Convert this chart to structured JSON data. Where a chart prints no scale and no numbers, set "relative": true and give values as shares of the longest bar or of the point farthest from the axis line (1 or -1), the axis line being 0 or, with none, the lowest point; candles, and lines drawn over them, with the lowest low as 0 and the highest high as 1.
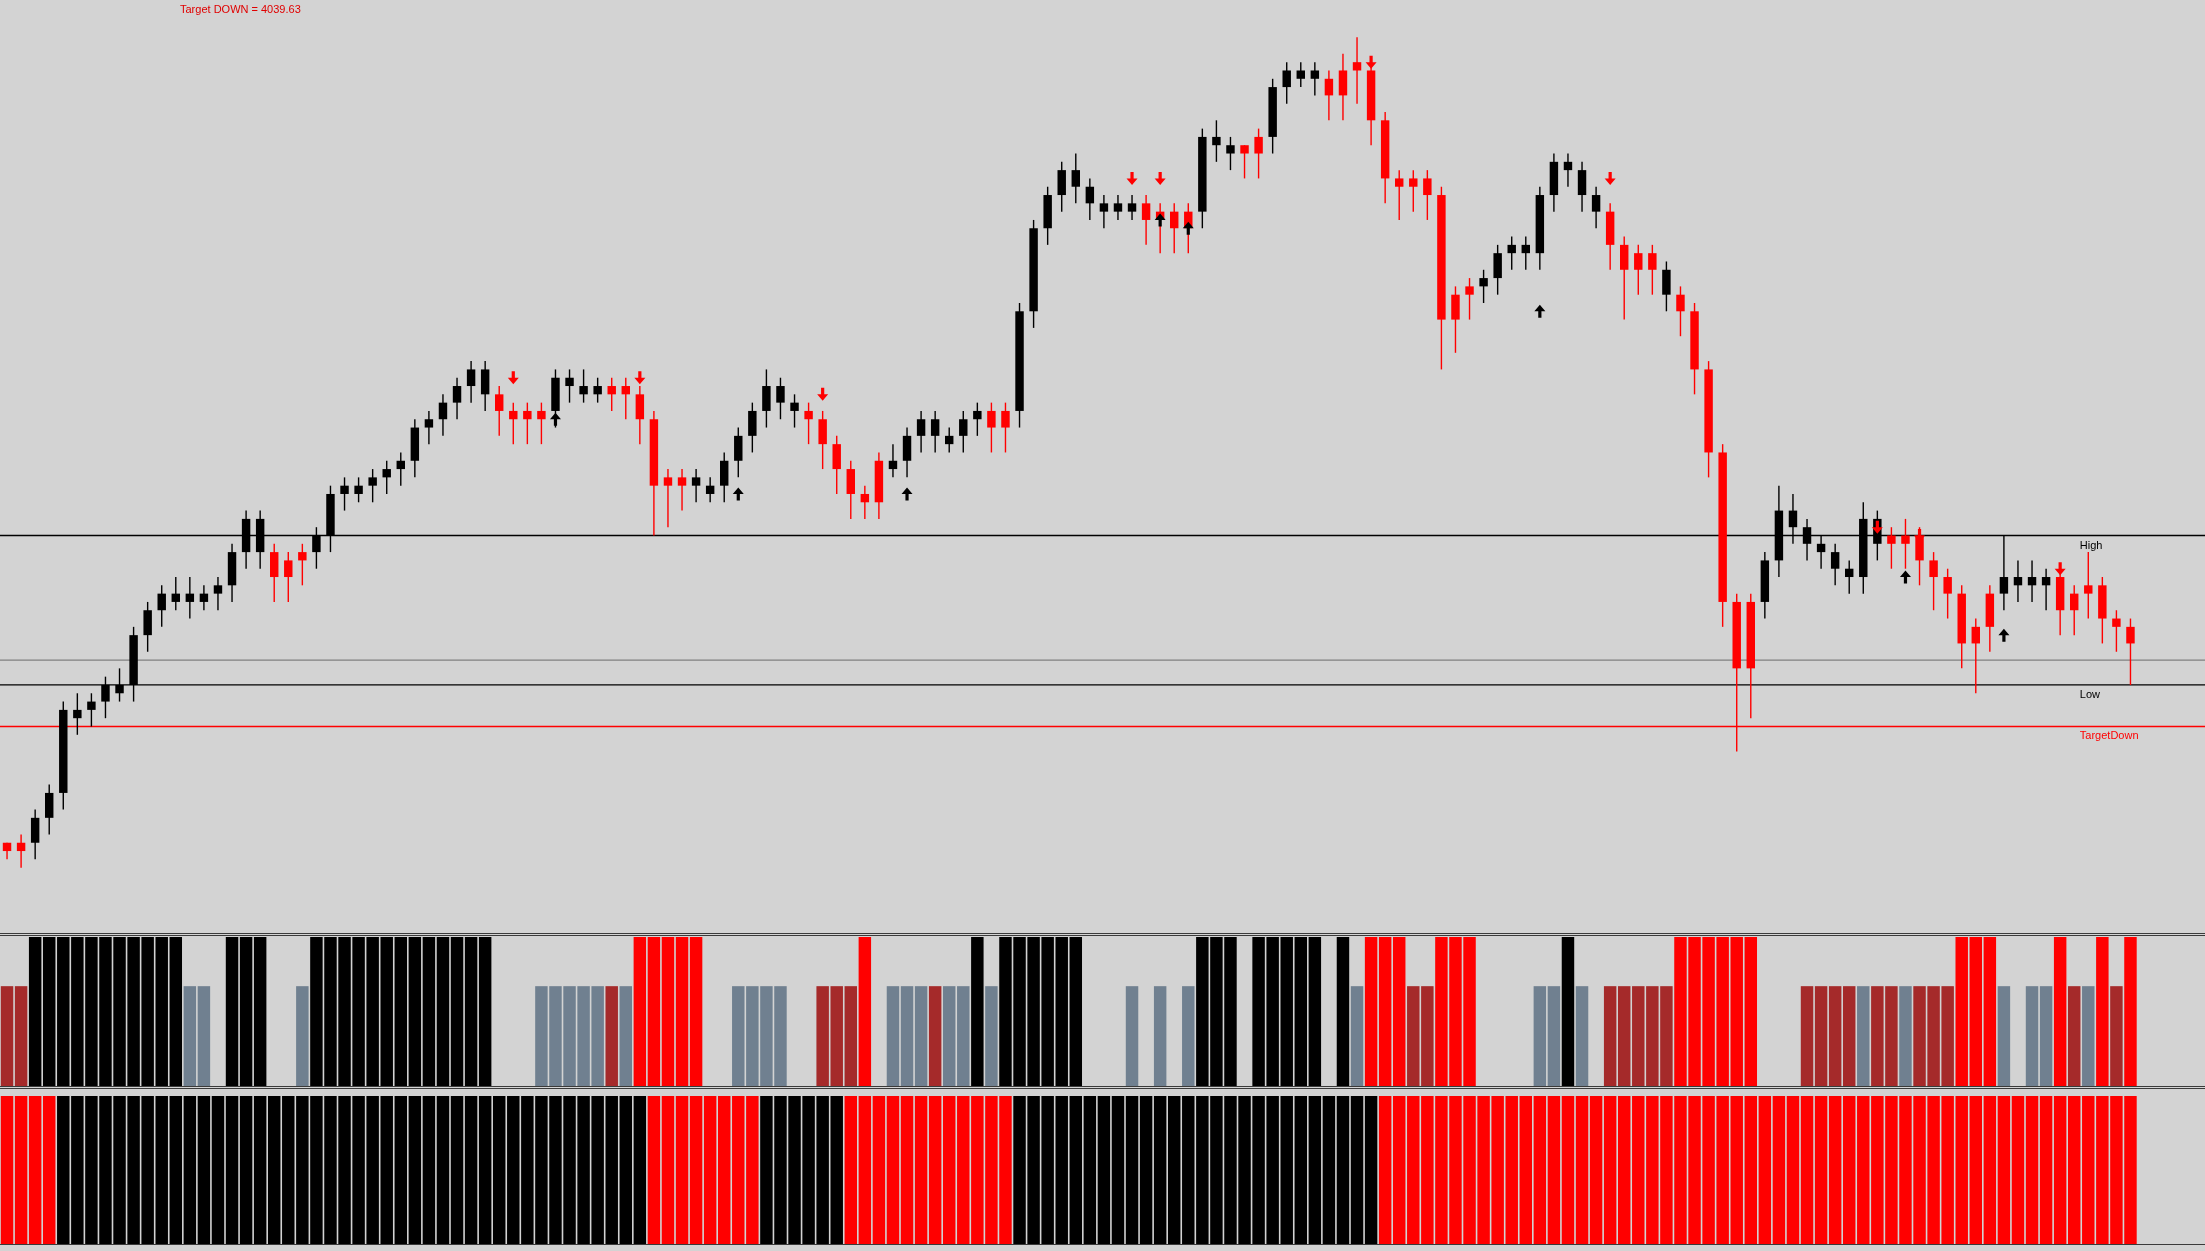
{
  "chart_data": [
    {
      "type": "candlestick",
      "relative": true,
      "categories": [
        null,
        null,
        null,
        null,
        null,
        null,
        null,
        null,
        null,
        null,
        null,
        null,
        null,
        null,
        null,
        null,
        null,
        null,
        null,
        null,
        null,
        null,
        null,
        null,
        null,
        null,
        null,
        null,
        null,
        null,
        null,
        null,
        null,
        null,
        null,
        null,
        null,
        null,
        null,
        null,
        null,
        null,
        null,
        null,
        null,
        null,
        null,
        null,
        null,
        null,
        null,
        null,
        null,
        null,
        null,
        null,
        null,
        null,
        null,
        null,
        null,
        null,
        null,
        null,
        null,
        null,
        null,
        null,
        null,
        null,
        null,
        null,
        null,
        null,
        null,
        null,
        null,
        null,
        null,
        null,
        null,
        null,
        null,
        null,
        null,
        null,
        null,
        null,
        null,
        null,
        null,
        null,
        null,
        null,
        null,
        null,
        null,
        null,
        null,
        null,
        null,
        null,
        null,
        null,
        null,
        null,
        null,
        null,
        null,
        null,
        null,
        null,
        null,
        null,
        null,
        null,
        null,
        null,
        null,
        null,
        null,
        null,
        null,
        null,
        null,
        null,
        null,
        null,
        null,
        null,
        null,
        null,
        null,
        null,
        null,
        null,
        null,
        null,
        null,
        null,
        null,
        null,
        null,
        null,
        null,
        null,
        null,
        null,
        null,
        null,
        null,
        null
      ],
      "ohlc": [
        [
          0.03,
          0.03,
          0.01,
          0.02
        ],
        [
          0.03,
          0.04,
          0,
          0.02
        ],
        [
          0.03,
          0.07,
          0.01,
          0.06
        ],
        [
          0.06,
          0.1,
          0.04,
          0.09
        ],
        [
          0.09,
          0.2,
          0.07,
          0.19
        ],
        [
          0.18,
          0.21,
          0.16,
          0.19
        ],
        [
          0.19,
          0.21,
          0.17,
          0.2
        ],
        [
          0.2,
          0.23,
          0.18,
          0.22
        ],
        [
          0.21,
          0.24,
          0.2,
          0.22
        ],
        [
          0.22,
          0.29,
          0.2,
          0.28
        ],
        [
          0.28,
          0.32,
          0.26,
          0.31
        ],
        [
          0.31,
          0.34,
          0.29,
          0.33
        ],
        [
          0.32,
          0.35,
          0.31,
          0.33
        ],
        [
          0.32,
          0.35,
          0.3,
          0.33
        ],
        [
          0.32,
          0.34,
          0.31,
          0.33
        ],
        [
          0.33,
          0.35,
          0.31,
          0.34
        ],
        [
          0.34,
          0.39,
          0.32,
          0.38
        ],
        [
          0.38,
          0.43,
          0.36,
          0.42
        ],
        [
          0.38,
          0.43,
          0.36,
          0.42
        ],
        [
          0.38,
          0.39,
          0.32,
          0.35
        ],
        [
          0.37,
          0.38,
          0.32,
          0.35
        ],
        [
          0.38,
          0.39,
          0.34,
          0.37
        ],
        [
          0.38,
          0.41,
          0.36,
          0.4
        ],
        [
          0.4,
          0.46,
          0.38,
          0.45
        ],
        [
          0.45,
          0.47,
          0.43,
          0.46
        ],
        [
          0.45,
          0.47,
          0.44,
          0.46
        ],
        [
          0.46,
          0.48,
          0.44,
          0.47
        ],
        [
          0.47,
          0.49,
          0.45,
          0.48
        ],
        [
          0.48,
          0.5,
          0.46,
          0.49
        ],
        [
          0.49,
          0.54,
          0.47,
          0.53
        ],
        [
          0.53,
          0.55,
          0.51,
          0.54
        ],
        [
          0.54,
          0.57,
          0.52,
          0.56
        ],
        [
          0.56,
          0.59,
          0.54,
          0.58
        ],
        [
          0.58,
          0.61,
          0.56,
          0.6
        ],
        [
          0.57,
          0.61,
          0.55,
          0.6
        ],
        [
          0.57,
          0.58,
          0.52,
          0.55
        ],
        [
          0.55,
          0.56,
          0.51,
          0.54
        ],
        [
          0.55,
          0.56,
          0.51,
          0.54
        ],
        [
          0.55,
          0.56,
          0.51,
          0.54
        ],
        [
          0.55,
          0.6,
          0.53,
          0.59
        ],
        [
          0.58,
          0.6,
          0.56,
          0.59
        ],
        [
          0.57,
          0.6,
          0.56,
          0.58
        ],
        [
          0.57,
          0.59,
          0.56,
          0.58
        ],
        [
          0.58,
          0.59,
          0.55,
          0.57
        ],
        [
          0.58,
          0.59,
          0.54,
          0.57
        ],
        [
          0.57,
          0.58,
          0.51,
          0.54
        ],
        [
          0.54,
          0.55,
          0.4,
          0.46
        ],
        [
          0.47,
          0.48,
          0.41,
          0.46
        ],
        [
          0.47,
          0.48,
          0.43,
          0.46
        ],
        [
          0.46,
          0.48,
          0.44,
          0.47
        ],
        [
          0.45,
          0.47,
          0.44,
          0.46
        ],
        [
          0.46,
          0.5,
          0.44,
          0.49
        ],
        [
          0.49,
          0.53,
          0.47,
          0.52
        ],
        [
          0.52,
          0.56,
          0.5,
          0.55
        ],
        [
          0.55,
          0.6,
          0.53,
          0.58
        ],
        [
          0.56,
          0.59,
          0.54,
          0.58
        ],
        [
          0.55,
          0.57,
          0.53,
          0.56
        ],
        [
          0.55,
          0.56,
          0.51,
          0.54
        ],
        [
          0.54,
          0.55,
          0.48,
          0.51
        ],
        [
          0.51,
          0.52,
          0.45,
          0.48
        ],
        [
          0.48,
          0.49,
          0.42,
          0.45
        ],
        [
          0.45,
          0.46,
          0.42,
          0.44
        ],
        [
          0.49,
          0.5,
          0.42,
          0.44
        ],
        [
          0.48,
          0.51,
          0.47,
          0.49
        ],
        [
          0.49,
          0.53,
          0.47,
          0.52
        ],
        [
          0.52,
          0.55,
          0.5,
          0.54
        ],
        [
          0.52,
          0.55,
          0.5,
          0.54
        ],
        [
          0.51,
          0.53,
          0.5,
          0.52
        ],
        [
          0.52,
          0.55,
          0.5,
          0.54
        ],
        [
          0.54,
          0.56,
          0.52,
          0.55
        ],
        [
          0.55,
          0.56,
          0.5,
          0.53
        ],
        [
          0.55,
          0.56,
          0.5,
          0.53
        ],
        [
          0.55,
          0.68,
          0.53,
          0.67
        ],
        [
          0.67,
          0.78,
          0.65,
          0.77
        ],
        [
          0.77,
          0.82,
          0.75,
          0.81
        ],
        [
          0.81,
          0.85,
          0.79,
          0.84
        ],
        [
          0.82,
          0.86,
          0.8,
          0.84
        ],
        [
          0.8,
          0.83,
          0.78,
          0.82
        ],
        [
          0.79,
          0.81,
          0.77,
          0.8
        ],
        [
          0.79,
          0.81,
          0.78,
          0.8
        ],
        [
          0.79,
          0.81,
          0.78,
          0.8
        ],
        [
          0.8,
          0.81,
          0.75,
          0.78
        ],
        [
          0.79,
          0.8,
          0.74,
          0.78
        ],
        [
          0.79,
          0.8,
          0.74,
          0.77
        ],
        [
          0.79,
          0.8,
          0.74,
          0.77
        ],
        [
          0.79,
          0.89,
          0.77,
          0.88
        ],
        [
          0.87,
          0.9,
          0.85,
          0.88
        ],
        [
          0.86,
          0.88,
          0.84,
          0.87
        ],
        [
          0.87,
          0.87,
          0.83,
          0.86
        ],
        [
          0.88,
          0.89,
          0.83,
          0.86
        ],
        [
          0.88,
          0.95,
          0.86,
          0.94
        ],
        [
          0.94,
          0.97,
          0.92,
          0.96
        ],
        [
          0.95,
          0.97,
          0.94,
          0.96
        ],
        [
          0.95,
          0.97,
          0.93,
          0.96
        ],
        [
          0.95,
          0.96,
          0.9,
          0.93
        ],
        [
          0.96,
          0.98,
          0.9,
          0.93
        ],
        [
          0.97,
          1,
          0.92,
          0.96
        ],
        [
          0.96,
          0.97,
          0.87,
          0.9
        ],
        [
          0.9,
          0.91,
          0.8,
          0.83
        ],
        [
          0.83,
          0.84,
          0.78,
          0.82
        ],
        [
          0.83,
          0.84,
          0.79,
          0.82
        ],
        [
          0.83,
          0.84,
          0.78,
          0.81
        ],
        [
          0.81,
          0.82,
          0.6,
          0.66
        ],
        [
          0.69,
          0.7,
          0.62,
          0.66
        ],
        [
          0.7,
          0.71,
          0.66,
          0.69
        ],
        [
          0.7,
          0.72,
          0.68,
          0.71
        ],
        [
          0.71,
          0.75,
          0.69,
          0.74
        ],
        [
          0.74,
          0.76,
          0.72,
          0.75
        ],
        [
          0.74,
          0.76,
          0.72,
          0.75
        ],
        [
          0.74,
          0.82,
          0.72,
          0.81
        ],
        [
          0.81,
          0.86,
          0.79,
          0.85
        ],
        [
          0.84,
          0.86,
          0.82,
          0.85
        ],
        [
          0.81,
          0.85,
          0.79,
          0.84
        ],
        [
          0.79,
          0.82,
          0.77,
          0.81
        ],
        [
          0.79,
          0.8,
          0.72,
          0.75
        ],
        [
          0.75,
          0.76,
          0.66,
          0.72
        ],
        [
          0.74,
          0.75,
          0.69,
          0.72
        ],
        [
          0.74,
          0.75,
          0.69,
          0.72
        ],
        [
          0.69,
          0.73,
          0.67,
          0.72
        ],
        [
          0.69,
          0.7,
          0.64,
          0.67
        ],
        [
          0.67,
          0.68,
          0.57,
          0.6
        ],
        [
          0.6,
          0.61,
          0.47,
          0.5
        ],
        [
          0.5,
          0.51,
          0.29,
          0.32
        ],
        [
          0.32,
          0.33,
          0.14,
          0.24
        ],
        [
          0.32,
          0.33,
          0.18,
          0.24
        ],
        [
          0.32,
          0.38,
          0.3,
          0.37
        ],
        [
          0.37,
          0.46,
          0.35,
          0.43
        ],
        [
          0.41,
          0.45,
          0.39,
          0.43
        ],
        [
          0.39,
          0.42,
          0.37,
          0.41
        ],
        [
          0.38,
          0.4,
          0.36,
          0.39
        ],
        [
          0.36,
          0.39,
          0.34,
          0.38
        ],
        [
          0.35,
          0.37,
          0.33,
          0.36
        ],
        [
          0.35,
          0.44,
          0.33,
          0.42
        ],
        [
          0.39,
          0.43,
          0.37,
          0.42
        ],
        [
          0.4,
          0.41,
          0.36,
          0.39
        ],
        [
          0.4,
          0.42,
          0.36,
          0.39
        ],
        [
          0.4,
          0.41,
          0.34,
          0.37
        ],
        [
          0.37,
          0.38,
          0.31,
          0.35
        ],
        [
          0.35,
          0.36,
          0.3,
          0.33
        ],
        [
          0.33,
          0.34,
          0.24,
          0.27
        ],
        [
          0.29,
          0.3,
          0.21,
          0.27
        ],
        [
          0.33,
          0.34,
          0.26,
          0.29
        ],
        [
          0.33,
          0.4,
          0.31,
          0.35
        ],
        [
          0.34,
          0.37,
          0.32,
          0.35
        ],
        [
          0.34,
          0.37,
          0.32,
          0.35
        ],
        [
          0.34,
          0.36,
          0.31,
          0.35
        ],
        [
          0.35,
          0.36,
          0.28,
          0.31
        ],
        [
          0.33,
          0.34,
          0.28,
          0.31
        ],
        [
          0.34,
          0.38,
          0.3,
          0.33
        ],
        [
          0.34,
          0.35,
          0.27,
          0.3
        ],
        [
          0.3,
          0.31,
          0.26,
          0.29
        ],
        [
          0.29,
          0.3,
          0.22,
          0.27
        ]
      ],
      "colors": [
        "#ff0000",
        "#ff0000",
        "#000000",
        "#000000",
        "#000000",
        "#000000",
        "#000000",
        "#000000",
        "#000000",
        "#000000",
        "#000000",
        "#000000",
        "#000000",
        "#000000",
        "#000000",
        "#000000",
        "#000000",
        "#000000",
        "#000000",
        "#ff0000",
        "#ff0000",
        "#ff0000",
        "#000000",
        "#000000",
        "#000000",
        "#000000",
        "#000000",
        "#000000",
        "#000000",
        "#000000",
        "#000000",
        "#000000",
        "#000000",
        "#000000",
        "#000000",
        "#ff0000",
        "#ff0000",
        "#ff0000",
        "#ff0000",
        "#000000",
        "#000000",
        "#000000",
        "#000000",
        "#ff0000",
        "#ff0000",
        "#ff0000",
        "#ff0000",
        "#ff0000",
        "#ff0000",
        "#000000",
        "#000000",
        "#000000",
        "#000000",
        "#000000",
        "#000000",
        "#000000",
        "#000000",
        "#ff0000",
        "#ff0000",
        "#ff0000",
        "#ff0000",
        "#ff0000",
        "#ff0000",
        "#000000",
        "#000000",
        "#000000",
        "#000000",
        "#000000",
        "#000000",
        "#000000",
        "#ff0000",
        "#ff0000",
        "#000000",
        "#000000",
        "#000000",
        "#000000",
        "#000000",
        "#000000",
        "#000000",
        "#000000",
        "#000000",
        "#ff0000",
        "#ff0000",
        "#ff0000",
        "#ff0000",
        "#000000",
        "#000000",
        "#000000",
        "#ff0000",
        "#ff0000",
        "#000000",
        "#000000",
        "#000000",
        "#000000",
        "#ff0000",
        "#ff0000",
        "#ff0000",
        "#ff0000",
        "#ff0000",
        "#ff0000",
        "#ff0000",
        "#ff0000",
        "#ff0000",
        "#ff0000",
        "#ff0000",
        "#000000",
        "#000000",
        "#000000",
        "#000000",
        "#000000",
        "#000000",
        "#000000",
        "#000000",
        "#000000",
        "#ff0000",
        "#ff0000",
        "#ff0000",
        "#ff0000",
        "#000000",
        "#ff0000",
        "#ff0000",
        "#ff0000",
        "#ff0000",
        "#ff0000",
        "#ff0000",
        "#000000",
        "#000000",
        "#000000",
        "#000000",
        "#000000",
        "#000000",
        "#000000",
        "#000000",
        "#000000",
        "#ff0000",
        "#ff0000",
        "#ff0000",
        "#ff0000",
        "#ff0000",
        "#ff0000",
        "#ff0000",
        "#ff0000",
        "#000000",
        "#000000",
        "#000000",
        "#000000",
        "#ff0000",
        "#ff0000",
        "#ff0000",
        "#ff0000",
        "#ff0000",
        "#ff0000"
      ],
      "series": [
        {
          "type": "scatter",
          "color": "#ff0000",
          "values": [
            null,
            null,
            null,
            null,
            null,
            null,
            null,
            null,
            null,
            null,
            null,
            null,
            null,
            null,
            null,
            null,
            null,
            null,
            null,
            null,
            null,
            null,
            null,
            null,
            null,
            null,
            null,
            null,
            null,
            null,
            null,
            null,
            null,
            null,
            null,
            null,
            0.59,
            null,
            null,
            null,
            null,
            null,
            null,
            null,
            null,
            0.59,
            null,
            null,
            null,
            null,
            null,
            null,
            null,
            null,
            null,
            null,
            null,
            null,
            0.57,
            null,
            null,
            null,
            null,
            null,
            null,
            null,
            null,
            null,
            null,
            null,
            null,
            null,
            null,
            null,
            null,
            null,
            null,
            null,
            null,
            null,
            0.83,
            null,
            0.83,
            null,
            null,
            null,
            null,
            null,
            null,
            null,
            null,
            null,
            null,
            null,
            null,
            null,
            null,
            0.97,
            null,
            null,
            null,
            null,
            null,
            null,
            null,
            null,
            null,
            null,
            null,
            null,
            null,
            null,
            null,
            null,
            0.83,
            null,
            null,
            null,
            null,
            null,
            null,
            null,
            null,
            null,
            null,
            null,
            null,
            null,
            null,
            null,
            null,
            null,
            null,
            0.41,
            null,
            null,
            0.4,
            null,
            null,
            null,
            null,
            null,
            null,
            null,
            null,
            null,
            0.36,
            null,
            null,
            null,
            null,
            null
          ]
        },
        {
          "type": "scatter",
          "color": "#000000",
          "values": [
            null,
            null,
            null,
            null,
            null,
            null,
            null,
            null,
            null,
            null,
            null,
            null,
            null,
            null,
            null,
            null,
            null,
            null,
            null,
            null,
            null,
            null,
            null,
            null,
            null,
            null,
            null,
            null,
            null,
            null,
            null,
            null,
            null,
            null,
            null,
            null,
            null,
            null,
            null,
            0.54,
            null,
            null,
            null,
            null,
            null,
            null,
            null,
            null,
            null,
            null,
            null,
            null,
            0.45,
            null,
            null,
            null,
            null,
            null,
            null,
            null,
            null,
            null,
            null,
            null,
            0.45,
            null,
            null,
            null,
            null,
            null,
            null,
            null,
            null,
            null,
            null,
            null,
            null,
            null,
            null,
            null,
            null,
            null,
            0.78,
            null,
            0.77,
            null,
            null,
            null,
            null,
            null,
            null,
            null,
            null,
            null,
            null,
            null,
            null,
            null,
            null,
            null,
            null,
            null,
            null,
            null,
            null,
            null,
            null,
            null,
            null,
            0.67,
            null,
            null,
            null,
            null,
            null,
            null,
            null,
            null,
            null,
            null,
            null,
            null,
            null,
            null,
            null,
            null,
            null,
            null,
            null,
            null,
            null,
            null,
            null,
            null,
            null,
            0.35,
            null,
            null,
            null,
            null,
            null,
            null,
            0.28,
            null,
            null,
            null,
            null,
            null,
            null,
            null,
            null,
            null
          ]
        }
      ],
      "ref_lines": [
        {
          "axis": "y",
          "value": 0.4,
          "label": "High",
          "color": "#000000"
        },
        {
          "axis": "y",
          "value": 0.25,
          "color": "#808080"
        },
        {
          "axis": "y",
          "value": 0.22,
          "label": "Low",
          "color": "#000000"
        },
        {
          "axis": "y",
          "value": 0.17,
          "label": "TargetDown",
          "color": "#ff0000"
        }
      ],
      "annotations": [
        "Target DOWN = 4039.63"
      ]
    },
    {
      "type": "bar",
      "relative": true,
      "categories": [
        null,
        null,
        null,
        null,
        null,
        null,
        null,
        null,
        null,
        null,
        null,
        null,
        null,
        null,
        null,
        null,
        null,
        null,
        null,
        null,
        null,
        null,
        null,
        null,
        null,
        null,
        null,
        null,
        null,
        null,
        null,
        null,
        null,
        null,
        null,
        null,
        null,
        null,
        null,
        null,
        null,
        null,
        null,
        null,
        null,
        null,
        null,
        null,
        null,
        null,
        null,
        null,
        null,
        null,
        null,
        null,
        null,
        null,
        null,
        null,
        null,
        null,
        null,
        null,
        null,
        null,
        null,
        null,
        null,
        null,
        null,
        null,
        null,
        null,
        null,
        null,
        null,
        null,
        null,
        null,
        null,
        null,
        null,
        null,
        null,
        null,
        null,
        null,
        null,
        null,
        null,
        null,
        null,
        null,
        null,
        null,
        null,
        null,
        null,
        null,
        null,
        null,
        null,
        null,
        null,
        null,
        null,
        null,
        null,
        null,
        null,
        null,
        null,
        null,
        null,
        null,
        null,
        null,
        null,
        null,
        null,
        null,
        null,
        null,
        null,
        null,
        null,
        null,
        null,
        null,
        null,
        null,
        null,
        null,
        null,
        null,
        null,
        null,
        null,
        null,
        null,
        null,
        null,
        null,
        null,
        null,
        null,
        null,
        null,
        null,
        null,
        null
      ],
      "values": [
        0.67,
        0.67,
        1,
        1,
        1,
        1,
        1,
        1,
        1,
        1,
        1,
        1,
        1,
        0.67,
        0.67,
        null,
        1,
        1,
        1,
        null,
        null,
        0.67,
        1,
        1,
        1,
        1,
        1,
        1,
        1,
        1,
        1,
        1,
        1,
        1,
        1,
        null,
        null,
        null,
        0.67,
        0.67,
        0.67,
        0.67,
        0.67,
        0.67,
        0.67,
        1,
        1,
        1,
        1,
        1,
        null,
        null,
        0.67,
        0.67,
        0.67,
        0.67,
        null,
        null,
        0.67,
        0.67,
        0.67,
        1,
        null,
        0.67,
        0.67,
        0.67,
        0.67,
        0.67,
        0.67,
        1,
        0.67,
        1,
        1,
        1,
        1,
        1,
        1,
        null,
        null,
        null,
        0.67,
        null,
        0.67,
        null,
        0.67,
        1,
        1,
        1,
        null,
        1,
        1,
        1,
        1,
        1,
        null,
        1,
        0.67,
        1,
        1,
        1,
        0.67,
        0.67,
        1,
        1,
        1,
        null,
        null,
        null,
        null,
        0.67,
        0.67,
        1,
        0.67,
        null,
        0.67,
        0.67,
        0.67,
        0.67,
        0.67,
        1,
        1,
        1,
        1,
        1,
        1,
        null,
        null,
        null,
        0.67,
        0.67,
        0.67,
        0.67,
        0.67,
        0.67,
        0.67,
        0.67,
        0.67,
        0.67,
        0.67,
        1,
        1,
        1,
        0.67,
        null,
        0.67,
        0.67,
        1,
        0.67,
        0.67,
        1,
        0.67,
        1
      ],
      "colors": [
        "#a52a2a",
        "#a52a2a",
        "#000000",
        "#000000",
        "#000000",
        "#000000",
        "#000000",
        "#000000",
        "#000000",
        "#000000",
        "#000000",
        "#000000",
        "#000000",
        "#708090",
        "#708090",
        null,
        "#000000",
        "#000000",
        "#000000",
        null,
        null,
        "#708090",
        "#000000",
        "#000000",
        "#000000",
        "#000000",
        "#000000",
        "#000000",
        "#000000",
        "#000000",
        "#000000",
        "#000000",
        "#000000",
        "#000000",
        "#000000",
        null,
        null,
        null,
        "#708090",
        "#708090",
        "#708090",
        "#708090",
        "#708090",
        "#a52a2a",
        "#708090",
        "#ff0000",
        "#ff0000",
        "#ff0000",
        "#ff0000",
        "#ff0000",
        null,
        null,
        "#708090",
        "#708090",
        "#708090",
        "#708090",
        null,
        null,
        "#a52a2a",
        "#a52a2a",
        "#a52a2a",
        "#ff0000",
        null,
        "#708090",
        "#708090",
        "#708090",
        "#a52a2a",
        "#708090",
        "#708090",
        "#000000",
        "#708090",
        "#000000",
        "#000000",
        "#000000",
        "#000000",
        "#000000",
        "#000000",
        null,
        null,
        null,
        "#708090",
        null,
        "#708090",
        null,
        "#708090",
        "#000000",
        "#000000",
        "#000000",
        null,
        "#000000",
        "#000000",
        "#000000",
        "#000000",
        "#000000",
        null,
        "#000000",
        "#708090",
        "#ff0000",
        "#ff0000",
        "#ff0000",
        "#a52a2a",
        "#a52a2a",
        "#ff0000",
        "#ff0000",
        "#ff0000",
        null,
        null,
        null,
        null,
        "#708090",
        "#708090",
        "#000000",
        "#708090",
        null,
        "#a52a2a",
        "#a52a2a",
        "#a52a2a",
        "#a52a2a",
        "#a52a2a",
        "#ff0000",
        "#ff0000",
        "#ff0000",
        "#ff0000",
        "#ff0000",
        "#ff0000",
        null,
        null,
        null,
        "#a52a2a",
        "#a52a2a",
        "#a52a2a",
        "#a52a2a",
        "#708090",
        "#a52a2a",
        "#a52a2a",
        "#708090",
        "#a52a2a",
        "#a52a2a",
        "#a52a2a",
        "#ff0000",
        "#ff0000",
        "#ff0000",
        "#708090",
        null,
        "#708090",
        "#708090",
        "#ff0000",
        "#a52a2a",
        "#708090",
        "#ff0000",
        "#a52a2a",
        "#ff0000"
      ]
    },
    {
      "type": "bar",
      "relative": true,
      "categories": [
        null,
        null,
        null,
        null,
        null,
        null,
        null,
        null,
        null,
        null,
        null,
        null,
        null,
        null,
        null,
        null,
        null,
        null,
        null,
        null,
        null,
        null,
        null,
        null,
        null,
        null,
        null,
        null,
        null,
        null,
        null,
        null,
        null,
        null,
        null,
        null,
        null,
        null,
        null,
        null,
        null,
        null,
        null,
        null,
        null,
        null,
        null,
        null,
        null,
        null,
        null,
        null,
        null,
        null,
        null,
        null,
        null,
        null,
        null,
        null,
        null,
        null,
        null,
        null,
        null,
        null,
        null,
        null,
        null,
        null,
        null,
        null,
        null,
        null,
        null,
        null,
        null,
        null,
        null,
        null,
        null,
        null,
        null,
        null,
        null,
        null,
        null,
        null,
        null,
        null,
        null,
        null,
        null,
        null,
        null,
        null,
        null,
        null,
        null,
        null,
        null,
        null,
        null,
        null,
        null,
        null,
        null,
        null,
        null,
        null,
        null,
        null,
        null,
        null,
        null,
        null,
        null,
        null,
        null,
        null,
        null,
        null,
        null,
        null,
        null,
        null,
        null,
        null,
        null,
        null,
        null,
        null,
        null,
        null,
        null,
        null,
        null,
        null,
        null,
        null,
        null,
        null,
        null,
        null,
        null,
        null,
        null,
        null,
        null,
        null,
        null,
        null
      ],
      "values": [
        1,
        1,
        1,
        1,
        1,
        1,
        1,
        1,
        1,
        1,
        1,
        1,
        1,
        1,
        1,
        1,
        1,
        1,
        1,
        1,
        1,
        1,
        1,
        1,
        1,
        1,
        1,
        1,
        1,
        1,
        1,
        1,
        1,
        1,
        1,
        1,
        1,
        1,
        1,
        1,
        1,
        1,
        1,
        1,
        1,
        1,
        1,
        1,
        1,
        1,
        1,
        1,
        1,
        1,
        1,
        1,
        1,
        1,
        1,
        1,
        1,
        1,
        1,
        1,
        1,
        1,
        1,
        1,
        1,
        1,
        1,
        1,
        1,
        1,
        1,
        1,
        1,
        1,
        1,
        1,
        1,
        1,
        1,
        1,
        1,
        1,
        1,
        1,
        1,
        1,
        1,
        1,
        1,
        1,
        1,
        1,
        1,
        1,
        1,
        1,
        1,
        1,
        1,
        1,
        1,
        1,
        1,
        1,
        1,
        1,
        1,
        1,
        1,
        1,
        1,
        1,
        1,
        1,
        1,
        1,
        1,
        1,
        1,
        1,
        1,
        1,
        1,
        1,
        1,
        1,
        1,
        1,
        1,
        1,
        1,
        1,
        1,
        1,
        1,
        1,
        1,
        1,
        1,
        1,
        1,
        1,
        1,
        1,
        1,
        1,
        1,
        1
      ],
      "colors": [
        "#ff0000",
        "#ff0000",
        "#ff0000",
        "#ff0000",
        "#000000",
        "#000000",
        "#000000",
        "#000000",
        "#000000",
        "#000000",
        "#000000",
        "#000000",
        "#000000",
        "#000000",
        "#000000",
        "#000000",
        "#000000",
        "#000000",
        "#000000",
        "#000000",
        "#000000",
        "#000000",
        "#000000",
        "#000000",
        "#000000",
        "#000000",
        "#000000",
        "#000000",
        "#000000",
        "#000000",
        "#000000",
        "#000000",
        "#000000",
        "#000000",
        "#000000",
        "#000000",
        "#000000",
        "#000000",
        "#000000",
        "#000000",
        "#000000",
        "#000000",
        "#000000",
        "#000000",
        "#000000",
        "#000000",
        "#ff0000",
        "#ff0000",
        "#ff0000",
        "#ff0000",
        "#ff0000",
        "#ff0000",
        "#ff0000",
        "#ff0000",
        "#000000",
        "#000000",
        "#000000",
        "#000000",
        "#000000",
        "#000000",
        "#ff0000",
        "#ff0000",
        "#ff0000",
        "#ff0000",
        "#ff0000",
        "#ff0000",
        "#ff0000",
        "#ff0000",
        "#ff0000",
        "#ff0000",
        "#ff0000",
        "#ff0000",
        "#000000",
        "#000000",
        "#000000",
        "#000000",
        "#000000",
        "#000000",
        "#000000",
        "#000000",
        "#000000",
        "#000000",
        "#000000",
        "#000000",
        "#000000",
        "#000000",
        "#000000",
        "#000000",
        "#000000",
        "#000000",
        "#000000",
        "#000000",
        "#000000",
        "#000000",
        "#000000",
        "#000000",
        "#000000",
        "#000000",
        "#ff0000",
        "#ff0000",
        "#ff0000",
        "#ff0000",
        "#ff0000",
        "#ff0000",
        "#ff0000",
        "#ff0000",
        "#ff0000",
        "#ff0000",
        "#ff0000",
        "#ff0000",
        "#ff0000",
        "#ff0000",
        "#ff0000",
        "#ff0000",
        "#ff0000",
        "#ff0000",
        "#ff0000",
        "#ff0000",
        "#ff0000",
        "#ff0000",
        "#ff0000",
        "#ff0000",
        "#ff0000",
        "#ff0000",
        "#ff0000",
        "#ff0000",
        "#ff0000",
        "#ff0000",
        "#ff0000",
        "#ff0000",
        "#ff0000",
        "#ff0000",
        "#ff0000",
        "#ff0000",
        "#ff0000",
        "#ff0000",
        "#ff0000",
        "#ff0000",
        "#ff0000",
        "#ff0000",
        "#ff0000",
        "#ff0000",
        "#ff0000",
        "#ff0000",
        "#ff0000",
        "#ff0000",
        "#ff0000",
        "#ff0000",
        "#ff0000",
        "#ff0000",
        "#ff0000",
        "#ff0000"
      ]
    }
  ]
}
